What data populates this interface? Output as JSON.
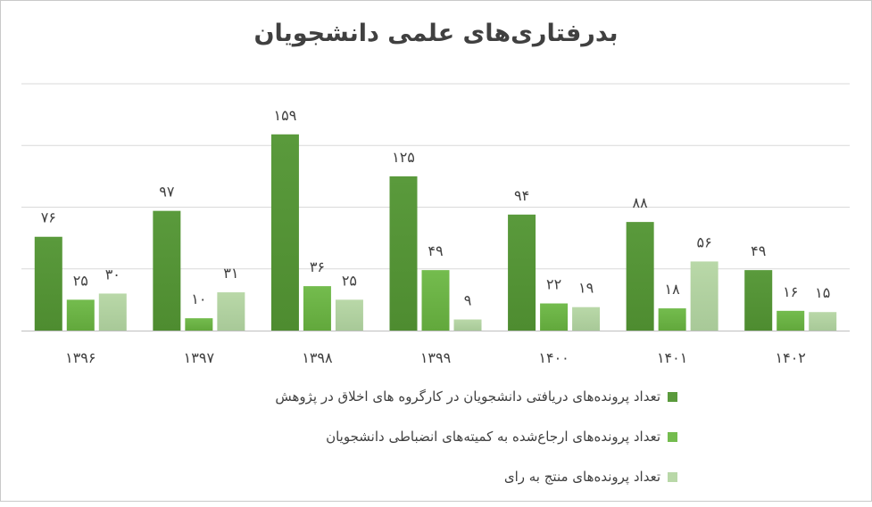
{
  "colors": {
    "series": [
      "#5a9a3c",
      "#74bc4e",
      "#b9d8a8"
    ],
    "series_dark": [
      "#4e8c30",
      "#62a83c",
      "#a8c998"
    ],
    "grid": "#d9d9d9",
    "axis": "#bfbfbf",
    "label": "#404040"
  },
  "chart_data": {
    "type": "bar",
    "title": "بدرفتاری‌های علمی دانشجویان",
    "categories": [
      "۱۳۹۶",
      "۱۳۹۷",
      "۱۳۹۸",
      "۱۳۹۹",
      "۱۴۰۰",
      "۱۴۰۱",
      "۱۴۰۲"
    ],
    "series": [
      {
        "name": "تعداد پرونده‌های دریافتی دانشجویان در کارگروه های اخلاق در پژوهش",
        "values": [
          76,
          97,
          159,
          125,
          94,
          88,
          49
        ],
        "labels": [
          "۷۶",
          "۹۷",
          "۱۵۹",
          "۱۲۵",
          "۹۴",
          "۸۸",
          "۴۹"
        ]
      },
      {
        "name": "تعداد پرونده‌های ارجاع‌شده به کمیته‌های انضباطی دانشجویان",
        "values": [
          25,
          10,
          36,
          49,
          22,
          18,
          16
        ],
        "labels": [
          "۲۵",
          "۱۰",
          "۳۶",
          "۴۹",
          "۲۲",
          "۱۸",
          "۱۶"
        ]
      },
      {
        "name": "تعداد پرونده‌های منتج به رای",
        "values": [
          30,
          31,
          25,
          9,
          19,
          56,
          15
        ],
        "labels": [
          "۳۰",
          "۳۱",
          "۲۵",
          "۹",
          "۱۹",
          "۵۶",
          "۱۵"
        ]
      }
    ],
    "ylim": [
      0,
      200
    ],
    "gridlines": [
      0,
      50,
      100,
      150,
      200
    ],
    "grid": true,
    "legend_position": "bottom-center",
    "xlabel": "",
    "ylabel": ""
  }
}
